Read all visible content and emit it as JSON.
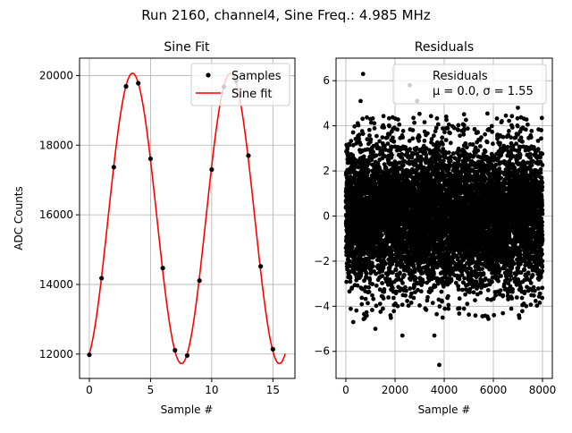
{
  "figure": {
    "suptitle": "Run 2160, channel4, Sine Freq.: 4.985 MHz"
  },
  "colors": {
    "samples": "#000000",
    "fit": "#ff0000",
    "grid": "#b0b0b0",
    "axes": "#000000",
    "background": "#ffffff"
  },
  "chart_data": [
    {
      "type": "line",
      "title": "Sine Fit",
      "xlabel": "Sample #",
      "ylabel": "ADC Counts",
      "xlim": [
        -0.8,
        16.8
      ],
      "ylim": [
        11300,
        20500
      ],
      "xticks": [
        0,
        5,
        10,
        15
      ],
      "xtick_labels": [
        "0",
        "5",
        "10",
        "15"
      ],
      "yticks": [
        12000,
        14000,
        16000,
        18000,
        20000
      ],
      "ytick_labels": [
        "12000",
        "14000",
        "16000",
        "18000",
        "20000"
      ],
      "grid": true,
      "legend": {
        "placement": "upper right",
        "entries": [
          "Samples",
          "Sine fit"
        ]
      },
      "samples": {
        "name": "Samples",
        "x": [
          0,
          1,
          2,
          3,
          4,
          5,
          6,
          7,
          8,
          9,
          10,
          11,
          12,
          13,
          14,
          15
        ],
        "y": [
          11980,
          14180,
          17370,
          19690,
          19780,
          17610,
          14470,
          12110,
          11960,
          14110,
          17300,
          19680,
          19850,
          17700,
          14520,
          12140
        ]
      },
      "fit": {
        "name": "Sine fit",
        "model": "offset + amplitude * sin(2*pi*x/period + phase)",
        "offset": 15895,
        "amplitude": 4170,
        "period": 8.0,
        "phase": -1.2,
        "x_range": [
          0,
          16
        ]
      }
    },
    {
      "type": "scatter",
      "title": "Residuals",
      "xlabel": "Sample #",
      "ylabel": "",
      "xlim": [
        -400,
        8400
      ],
      "ylim": [
        -7.2,
        7.0
      ],
      "xticks": [
        0,
        2000,
        4000,
        6000,
        8000
      ],
      "xtick_labels": [
        "0",
        "2000",
        "4000",
        "6000",
        "8000"
      ],
      "yticks": [
        -6,
        -4,
        -2,
        0,
        2,
        4,
        6
      ],
      "ytick_labels": [
        "−6",
        "−4",
        "−2",
        "0",
        "2",
        "4",
        "6"
      ],
      "grid": true,
      "legend": {
        "placement": "upper right",
        "entries": [
          "Residuals",
          "μ = 0.0, σ = 1.55"
        ]
      },
      "residuals": {
        "name": "Residuals",
        "n_points": 8000,
        "mean": 0.0,
        "std": 1.55,
        "x_range": [
          0,
          8000
        ],
        "outliers": [
          {
            "x": 700,
            "y": 6.3
          },
          {
            "x": 2600,
            "y": 5.8
          },
          {
            "x": 3800,
            "y": -6.6
          },
          {
            "x": 2300,
            "y": -5.3
          },
          {
            "x": 3600,
            "y": -5.3
          },
          {
            "x": 1200,
            "y": -5.0
          },
          {
            "x": 600,
            "y": 5.1
          },
          {
            "x": 7000,
            "y": 4.8
          },
          {
            "x": 2900,
            "y": 5.1
          },
          {
            "x": 300,
            "y": -4.7
          }
        ]
      }
    }
  ]
}
